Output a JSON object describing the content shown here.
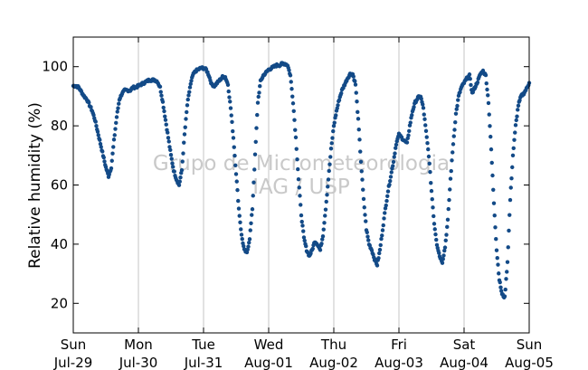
{
  "chart_data": {
    "type": "scatter",
    "title": "",
    "ylabel": "Relative humidity (%)",
    "xlabel": "",
    "xlim": [
      "2012-07-29 00:00",
      "2012-08-05 00:00"
    ],
    "ylim": [
      10,
      110
    ],
    "yticks": [
      20,
      40,
      60,
      80,
      100
    ],
    "xticks": [
      {
        "day": "Sun",
        "date": "Jul-29"
      },
      {
        "day": "Mon",
        "date": "Jul-30"
      },
      {
        "day": "Tue",
        "date": "Jul-31"
      },
      {
        "day": "Wed",
        "date": "Aug-01"
      },
      {
        "day": "Thu",
        "date": "Aug-02"
      },
      {
        "day": "Fri",
        "date": "Aug-03"
      },
      {
        "day": "Sat",
        "date": "Aug-04"
      },
      {
        "day": "Sun",
        "date": "Aug-05"
      }
    ],
    "grid": "vertical",
    "marker_color": "#134a87",
    "watermark": [
      "Grupo de Micrometeorologia",
      "IAG / USP"
    ],
    "series": [
      {
        "points": [
          [
            "07-29 00:00",
            93.5
          ],
          [
            "07-29 01:00",
            93.5
          ],
          [
            "07-29 02:00",
            93
          ],
          [
            "07-29 03:00",
            91.5
          ],
          [
            "07-29 04:00",
            90
          ],
          [
            "07-29 05:00",
            89
          ],
          [
            "07-29 06:00",
            87
          ],
          [
            "07-29 07:00",
            85
          ],
          [
            "07-29 08:00",
            82
          ],
          [
            "07-29 09:00",
            78
          ],
          [
            "07-29 10:00",
            74
          ],
          [
            "07-29 11:00",
            70
          ],
          [
            "07-29 12:00",
            66
          ],
          [
            "07-29 13:00",
            63
          ],
          [
            "07-29 14:00",
            66
          ],
          [
            "07-29 15:00",
            75
          ],
          [
            "07-29 16:00",
            83
          ],
          [
            "07-29 17:00",
            89
          ],
          [
            "07-29 18:00",
            91
          ],
          [
            "07-29 19:00",
            92
          ],
          [
            "07-29 20:00",
            92
          ],
          [
            "07-29 21:00",
            92
          ],
          [
            "07-29 22:00",
            93
          ],
          [
            "07-29 23:00",
            93
          ],
          [
            "07-30 00:00",
            93.5
          ],
          [
            "07-30 01:00",
            94
          ],
          [
            "07-30 02:00",
            94.5
          ],
          [
            "07-30 03:00",
            95
          ],
          [
            "07-30 04:00",
            95.5
          ],
          [
            "07-30 05:00",
            95.5
          ],
          [
            "07-30 06:00",
            95.5
          ],
          [
            "07-30 07:00",
            95
          ],
          [
            "07-30 08:00",
            93
          ],
          [
            "07-30 09:00",
            88
          ],
          [
            "07-30 10:00",
            82
          ],
          [
            "07-30 11:00",
            76
          ],
          [
            "07-30 12:00",
            70
          ],
          [
            "07-30 13:00",
            65
          ],
          [
            "07-30 14:00",
            62
          ],
          [
            "07-30 15:00",
            60
          ],
          [
            "07-30 16:00",
            65
          ],
          [
            "07-30 17:00",
            77
          ],
          [
            "07-30 18:00",
            87
          ],
          [
            "07-30 19:00",
            93
          ],
          [
            "07-30 20:00",
            97
          ],
          [
            "07-30 21:00",
            98.5
          ],
          [
            "07-30 22:00",
            99
          ],
          [
            "07-30 23:00",
            99.5
          ],
          [
            "07-31 00:00",
            99.5
          ],
          [
            "07-31 01:00",
            99
          ],
          [
            "07-31 02:00",
            97
          ],
          [
            "07-31 03:00",
            94
          ],
          [
            "07-31 04:00",
            93.5
          ],
          [
            "07-31 05:00",
            94.5
          ],
          [
            "07-31 06:00",
            95.5
          ],
          [
            "07-31 07:00",
            96.5
          ],
          [
            "07-31 08:00",
            96.5
          ],
          [
            "07-31 09:00",
            94
          ],
          [
            "07-31 10:00",
            86
          ],
          [
            "07-31 11:00",
            76
          ],
          [
            "07-31 12:00",
            64
          ],
          [
            "07-31 13:00",
            52
          ],
          [
            "07-31 14:00",
            43
          ],
          [
            "07-31 15:00",
            38
          ],
          [
            "07-31 16:00",
            37
          ],
          [
            "07-31 17:00",
            42
          ],
          [
            "07-31 18:00",
            52
          ],
          [
            "07-31 19:00",
            70
          ],
          [
            "07-31 20:00",
            88
          ],
          [
            "07-31 21:00",
            95
          ],
          [
            "07-31 22:00",
            97
          ],
          [
            "07-31 23:00",
            98
          ],
          [
            "08-01 00:00",
            99
          ],
          [
            "08-01 01:00",
            99.5
          ],
          [
            "08-01 02:00",
            100
          ],
          [
            "08-01 03:00",
            100.5
          ],
          [
            "08-01 04:00",
            100.5
          ],
          [
            "08-01 05:00",
            101
          ],
          [
            "08-01 06:00",
            101
          ],
          [
            "08-01 07:00",
            100.5
          ],
          [
            "08-01 08:00",
            97
          ],
          [
            "08-01 09:00",
            88
          ],
          [
            "08-01 10:00",
            76
          ],
          [
            "08-01 11:00",
            62
          ],
          [
            "08-01 12:00",
            50
          ],
          [
            "08-01 13:00",
            42
          ],
          [
            "08-01 14:00",
            38
          ],
          [
            "08-01 15:00",
            36
          ],
          [
            "08-01 16:00",
            38
          ],
          [
            "08-01 17:00",
            41
          ],
          [
            "08-01 18:00",
            40
          ],
          [
            "08-01 19:00",
            38
          ],
          [
            "08-01 20:00",
            43
          ],
          [
            "08-01 21:00",
            52
          ],
          [
            "08-01 22:00",
            62
          ],
          [
            "08-01 23:00",
            72
          ],
          [
            "08-02 00:00",
            80
          ],
          [
            "08-02 01:00",
            85
          ],
          [
            "08-02 02:00",
            89
          ],
          [
            "08-02 03:00",
            92
          ],
          [
            "08-02 04:00",
            94
          ],
          [
            "08-02 05:00",
            96
          ],
          [
            "08-02 06:00",
            97.5
          ],
          [
            "08-02 07:00",
            97.5
          ],
          [
            "08-02 08:00",
            94
          ],
          [
            "08-02 09:00",
            82
          ],
          [
            "08-02 10:00",
            68
          ],
          [
            "08-02 11:00",
            55
          ],
          [
            "08-02 12:00",
            45
          ],
          [
            "08-02 13:00",
            40
          ],
          [
            "08-02 14:00",
            38
          ],
          [
            "08-02 15:00",
            35
          ],
          [
            "08-02 16:00",
            33
          ],
          [
            "08-02 17:00",
            38
          ],
          [
            "08-02 18:00",
            45
          ],
          [
            "08-02 19:00",
            52
          ],
          [
            "08-02 20:00",
            58
          ],
          [
            "08-02 21:00",
            63
          ],
          [
            "08-02 22:00",
            68
          ],
          [
            "08-02 23:00",
            74
          ],
          [
            "08-03 00:00",
            77
          ],
          [
            "08-03 01:00",
            76
          ],
          [
            "08-03 02:00",
            75
          ],
          [
            "08-03 03:00",
            74
          ],
          [
            "08-03 04:00",
            80
          ],
          [
            "08-03 05:00",
            85
          ],
          [
            "08-03 06:00",
            88
          ],
          [
            "08-03 07:00",
            89.5
          ],
          [
            "08-03 08:00",
            90
          ],
          [
            "08-03 09:00",
            86
          ],
          [
            "08-03 10:00",
            78
          ],
          [
            "08-03 11:00",
            70
          ],
          [
            "08-03 12:00",
            58
          ],
          [
            "08-03 13:00",
            47
          ],
          [
            "08-03 14:00",
            40
          ],
          [
            "08-03 15:00",
            36
          ],
          [
            "08-03 16:00",
            34
          ],
          [
            "08-03 17:00",
            39
          ],
          [
            "08-03 18:00",
            48
          ],
          [
            "08-03 19:00",
            62
          ],
          [
            "08-03 20:00",
            74
          ],
          [
            "08-03 21:00",
            84
          ],
          [
            "08-03 22:00",
            90
          ],
          [
            "08-03 23:00",
            93
          ],
          [
            "08-04 00:00",
            94.5
          ],
          [
            "08-04 01:00",
            96
          ],
          [
            "08-04 02:00",
            97
          ],
          [
            "08-04 03:00",
            91
          ],
          [
            "08-04 04:00",
            93
          ],
          [
            "08-04 05:00",
            95
          ],
          [
            "08-04 06:00",
            97.5
          ],
          [
            "08-04 07:00",
            98.5
          ],
          [
            "08-04 08:00",
            97
          ],
          [
            "08-04 09:00",
            88
          ],
          [
            "08-04 10:00",
            72
          ],
          [
            "08-04 11:00",
            54
          ],
          [
            "08-04 12:00",
            38
          ],
          [
            "08-04 13:00",
            28
          ],
          [
            "08-04 14:00",
            23
          ],
          [
            "08-04 15:00",
            22
          ],
          [
            "08-04 16:00",
            34
          ],
          [
            "08-04 17:00",
            55
          ],
          [
            "08-04 18:00",
            70
          ],
          [
            "08-04 19:00",
            80
          ],
          [
            "08-04 20:00",
            87
          ],
          [
            "08-04 21:00",
            90
          ],
          [
            "08-04 22:00",
            91
          ],
          [
            "08-04 23:00",
            92.5
          ],
          [
            "08-05 00:00",
            94.5
          ]
        ]
      }
    ]
  }
}
